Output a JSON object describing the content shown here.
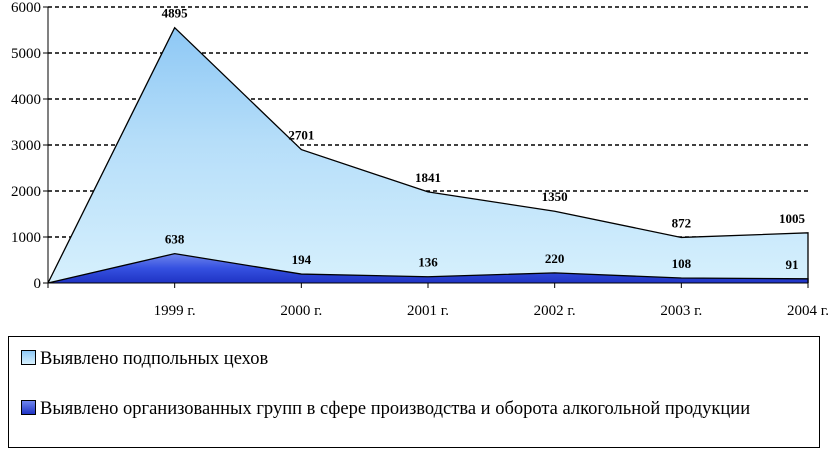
{
  "chart_data": {
    "type": "area",
    "categories": [
      "",
      "1999 г.",
      "2000 г.",
      "2001 г.",
      "2002 г.",
      "2003 г.",
      "2004 г."
    ],
    "series": [
      {
        "name": "Выявлено подпольных цехов",
        "values": [
          0,
          5550,
          2900,
          1980,
          1560,
          990,
          1090
        ],
        "labels": [
          "",
          "4895",
          "2701",
          "1841",
          "1350",
          "872",
          "1005"
        ],
        "color": "#bfe4fb"
      },
      {
        "name": "Выявлено организованных групп в сфере производства и оборота алкогольной продукции",
        "values": [
          0,
          638,
          194,
          136,
          220,
          108,
          91
        ],
        "labels": [
          "",
          "638",
          "194",
          "136",
          "220",
          "108",
          "91"
        ],
        "color": "#2b40d8"
      }
    ],
    "ylim": [
      0,
      6000
    ],
    "yticks": [
      "0",
      "1000",
      "2000",
      "3000",
      "4000",
      "5000",
      "6000"
    ],
    "grid": true,
    "legend": "bottom"
  }
}
